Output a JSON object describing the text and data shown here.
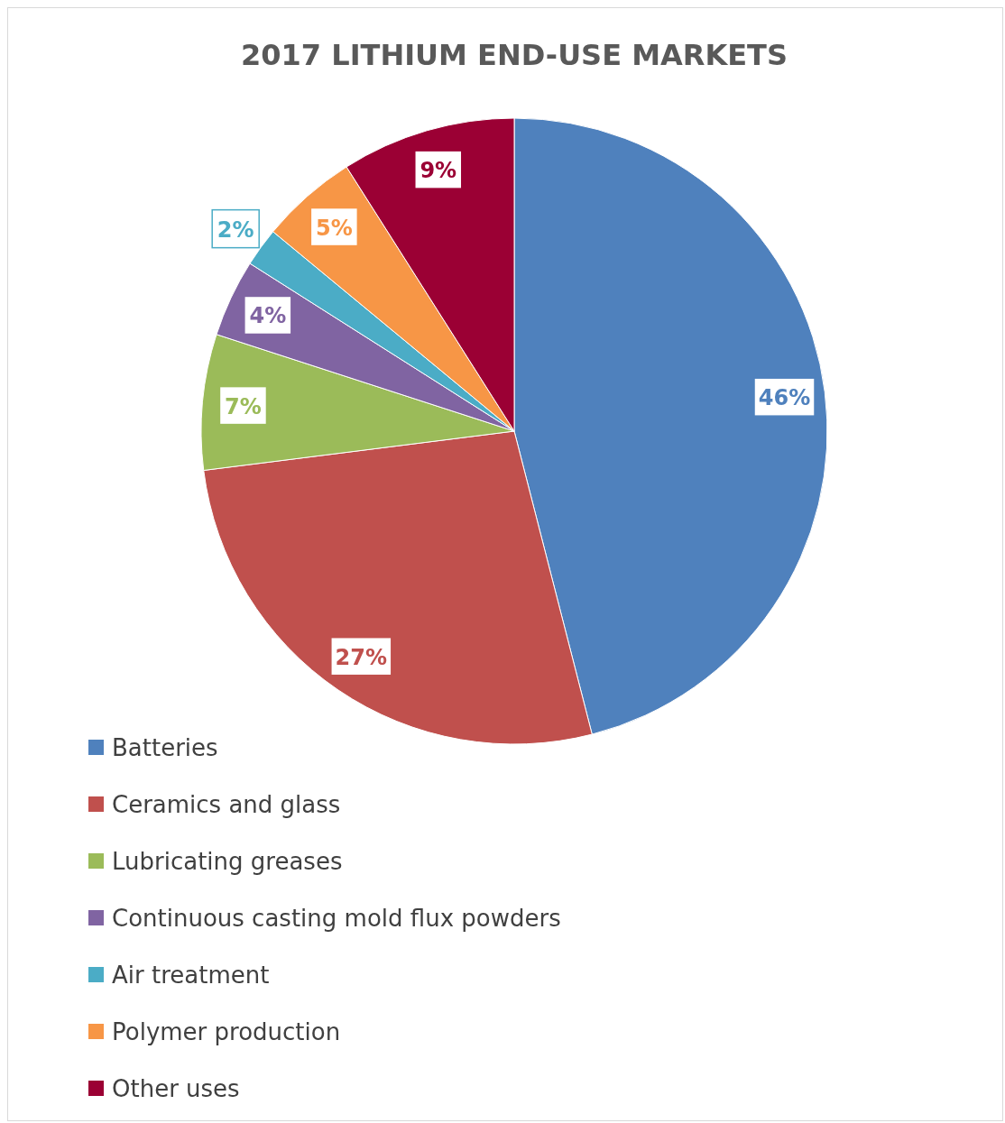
{
  "chart_data": {
    "type": "pie",
    "title": "2017 LITHIUM END-USE MARKETS",
    "categories": [
      "Batteries",
      "Ceramics and glass",
      "Lubricating greases",
      "Continuous casting mold flux powders",
      "Air treatment",
      "Polymer production",
      "Other uses"
    ],
    "values": [
      46,
      27,
      7,
      4,
      2,
      5,
      9
    ],
    "colors": [
      "#4f81bd",
      "#c0504d",
      "#9bbb59",
      "#8064a2",
      "#4bacc6",
      "#f79646",
      "#9b0034"
    ],
    "value_labels": [
      "46%",
      "27%",
      "7%",
      "4%",
      "2%",
      "5%",
      "9%"
    ],
    "legend": "bottom left"
  }
}
